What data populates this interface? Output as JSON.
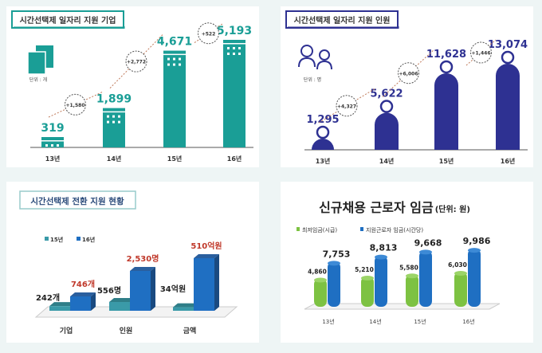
{
  "chart_data": [
    {
      "type": "bar",
      "title": "시간선택제 일자리 지원 기업",
      "unit_label": "단위 : 개",
      "icon": "building-icon",
      "categories": [
        "13년",
        "14년",
        "15년",
        "16년"
      ],
      "values": [
        319,
        1899,
        4671,
        5193
      ],
      "value_labels": [
        "319",
        "1,899",
        "4,671",
        "5,193"
      ],
      "increments": [
        "+1,580",
        "+2,772",
        "+522"
      ],
      "color": "#1a9e96",
      "grid": false
    },
    {
      "type": "bar",
      "title": "시간선택제 일자리 지원 인원",
      "unit_label": "단위 : 명",
      "icon": "people-icon",
      "categories": [
        "13년",
        "14년",
        "15년",
        "16년"
      ],
      "values": [
        1295,
        5622,
        11628,
        13074
      ],
      "value_labels": [
        "1,295",
        "5,622",
        "11,628",
        "13,074"
      ],
      "increments": [
        "+4,327",
        "+6,006",
        "+1,446"
      ],
      "color": "#2e3192",
      "grid": false
    },
    {
      "type": "bar",
      "title": "시간선택제 전환 지원 현황",
      "categories": [
        "기업",
        "인원",
        "금액"
      ],
      "series": [
        {
          "name": "15년",
          "values": [
            242,
            556,
            34
          ],
          "labels": [
            "242개",
            "556명",
            "34억원"
          ],
          "color": "#3a9aa8"
        },
        {
          "name": "16년",
          "values": [
            746,
            2530,
            510
          ],
          "labels": [
            "746개",
            "2,530명",
            "510억원"
          ],
          "color": "#1f6fc2"
        }
      ],
      "highlight_color": "#c0392b",
      "legend": "top-left",
      "grid": false
    },
    {
      "type": "bar",
      "title": "신규채용 근로자 임금",
      "title_unit": "(단위: 원)",
      "categories": [
        "13년",
        "14년",
        "15년",
        "16년"
      ],
      "series": [
        {
          "name": "최저임금(시급)",
          "values": [
            4860,
            5210,
            5580,
            6030
          ],
          "labels": [
            "4,860",
            "5,210",
            "5,580",
            "6,030"
          ],
          "color": "#7dc242"
        },
        {
          "name": "지원근로자 임금(시간당)",
          "values": [
            7753,
            8813,
            9668,
            9986
          ],
          "labels": [
            "7,753",
            "8,813",
            "9,668",
            "9,986"
          ],
          "color": "#1f6fc2"
        }
      ],
      "legend": "top-left",
      "grid": false
    }
  ]
}
